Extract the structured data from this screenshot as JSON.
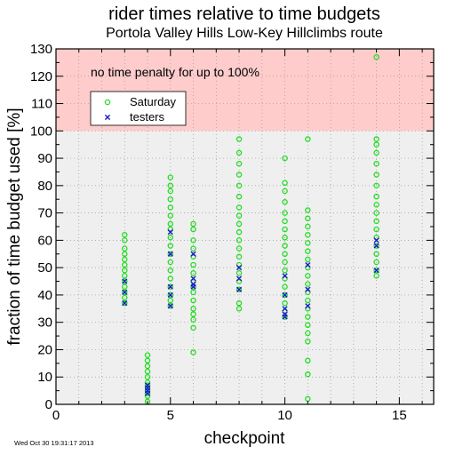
{
  "chart_data": {
    "type": "scatter",
    "title": "rider times relative to time budgets",
    "subtitle": "Portola Valley Hills Low-Key Hillclimbs route",
    "xlabel": "checkpoint",
    "ylabel": "fraction of time budget used [%]",
    "xlim": [
      0,
      16.5
    ],
    "ylim": [
      0,
      130
    ],
    "xticks": [
      "0",
      "5",
      "10",
      "15"
    ],
    "yticks": [
      "0",
      "10",
      "20",
      "30",
      "40",
      "50",
      "60",
      "70",
      "80",
      "90",
      "100",
      "110",
      "120",
      "130"
    ],
    "grid": true,
    "legend_position": "top-left",
    "annotation": "no time penalty for up to 100%",
    "timestamp": "Wed Oct 30 19:31:17 2013",
    "shaded_region": {
      "from": 100,
      "to": 130,
      "color": "#ffcccc"
    },
    "background_color": "#efefef",
    "series": [
      {
        "name": "Saturday",
        "marker": "circle",
        "color": "#22dd22",
        "points": [
          [
            3,
            62
          ],
          [
            3,
            60
          ],
          [
            3,
            57
          ],
          [
            3,
            55
          ],
          [
            3,
            53
          ],
          [
            3,
            51
          ],
          [
            3,
            49
          ],
          [
            3,
            47
          ],
          [
            3,
            45
          ],
          [
            3,
            43
          ],
          [
            3,
            41
          ],
          [
            3,
            39
          ],
          [
            3,
            37
          ],
          [
            4,
            18
          ],
          [
            4,
            16
          ],
          [
            4,
            14
          ],
          [
            4,
            12
          ],
          [
            4,
            10
          ],
          [
            4,
            8
          ],
          [
            4,
            7
          ],
          [
            4,
            6
          ],
          [
            4,
            5
          ],
          [
            4,
            4
          ],
          [
            4,
            3
          ],
          [
            4,
            1
          ],
          [
            5,
            83
          ],
          [
            5,
            80
          ],
          [
            5,
            78
          ],
          [
            5,
            75
          ],
          [
            5,
            72
          ],
          [
            5,
            69
          ],
          [
            5,
            66
          ],
          [
            5,
            64
          ],
          [
            5,
            61
          ],
          [
            5,
            58
          ],
          [
            5,
            55
          ],
          [
            5,
            52
          ],
          [
            5,
            49
          ],
          [
            5,
            46
          ],
          [
            5,
            43
          ],
          [
            5,
            40
          ],
          [
            5,
            38
          ],
          [
            5,
            36
          ],
          [
            6,
            66
          ],
          [
            6,
            64
          ],
          [
            6,
            60
          ],
          [
            6,
            57
          ],
          [
            6,
            54
          ],
          [
            6,
            51
          ],
          [
            6,
            48
          ],
          [
            6,
            45
          ],
          [
            6,
            43
          ],
          [
            6,
            41
          ],
          [
            6,
            38
          ],
          [
            6,
            35
          ],
          [
            6,
            33
          ],
          [
            6,
            31
          ],
          [
            6,
            28
          ],
          [
            6,
            19
          ],
          [
            8,
            97
          ],
          [
            8,
            92
          ],
          [
            8,
            88
          ],
          [
            8,
            84
          ],
          [
            8,
            80
          ],
          [
            8,
            76
          ],
          [
            8,
            72
          ],
          [
            8,
            69
          ],
          [
            8,
            66
          ],
          [
            8,
            63
          ],
          [
            8,
            60
          ],
          [
            8,
            57
          ],
          [
            8,
            54
          ],
          [
            8,
            51
          ],
          [
            8,
            48
          ],
          [
            8,
            45
          ],
          [
            8,
            42
          ],
          [
            8,
            37
          ],
          [
            8,
            35
          ],
          [
            10,
            90
          ],
          [
            10,
            81
          ],
          [
            10,
            78
          ],
          [
            10,
            74
          ],
          [
            10,
            70
          ],
          [
            10,
            67
          ],
          [
            10,
            64
          ],
          [
            10,
            61
          ],
          [
            10,
            58
          ],
          [
            10,
            55
          ],
          [
            10,
            52
          ],
          [
            10,
            49
          ],
          [
            10,
            46
          ],
          [
            10,
            43
          ],
          [
            10,
            40
          ],
          [
            10,
            37
          ],
          [
            10,
            34
          ],
          [
            10,
            32
          ],
          [
            11,
            97
          ],
          [
            11,
            71
          ],
          [
            11,
            68
          ],
          [
            11,
            65
          ],
          [
            11,
            62
          ],
          [
            11,
            59
          ],
          [
            11,
            56
          ],
          [
            11,
            53
          ],
          [
            11,
            50
          ],
          [
            11,
            47
          ],
          [
            11,
            44
          ],
          [
            11,
            41
          ],
          [
            11,
            38
          ],
          [
            11,
            35
          ],
          [
            11,
            32
          ],
          [
            11,
            29
          ],
          [
            11,
            26
          ],
          [
            11,
            23
          ],
          [
            11,
            16
          ],
          [
            11,
            11
          ],
          [
            11,
            2
          ],
          [
            14,
            127
          ],
          [
            14,
            97
          ],
          [
            14,
            95
          ],
          [
            14,
            92
          ],
          [
            14,
            88
          ],
          [
            14,
            84
          ],
          [
            14,
            80
          ],
          [
            14,
            76
          ],
          [
            14,
            73
          ],
          [
            14,
            70
          ],
          [
            14,
            67
          ],
          [
            14,
            64
          ],
          [
            14,
            61
          ],
          [
            14,
            58
          ],
          [
            14,
            55
          ],
          [
            14,
            52
          ],
          [
            14,
            49
          ],
          [
            14,
            47
          ]
        ]
      },
      {
        "name": "testers",
        "marker": "x",
        "color": "#1a1acc",
        "points": [
          [
            3,
            45
          ],
          [
            3,
            41
          ],
          [
            3,
            37
          ],
          [
            4,
            7
          ],
          [
            4,
            6
          ],
          [
            4,
            5
          ],
          [
            4,
            4
          ],
          [
            5,
            63
          ],
          [
            5,
            55
          ],
          [
            5,
            43
          ],
          [
            5,
            40
          ],
          [
            5,
            36
          ],
          [
            6,
            55
          ],
          [
            6,
            46
          ],
          [
            6,
            44
          ],
          [
            6,
            43
          ],
          [
            8,
            50
          ],
          [
            8,
            46
          ],
          [
            8,
            42
          ],
          [
            10,
            47
          ],
          [
            10,
            40
          ],
          [
            10,
            35
          ],
          [
            10,
            33
          ],
          [
            10,
            32
          ],
          [
            11,
            51
          ],
          [
            11,
            42
          ],
          [
            11,
            36
          ],
          [
            14,
            60
          ],
          [
            14,
            58
          ],
          [
            14,
            49
          ]
        ]
      }
    ]
  }
}
